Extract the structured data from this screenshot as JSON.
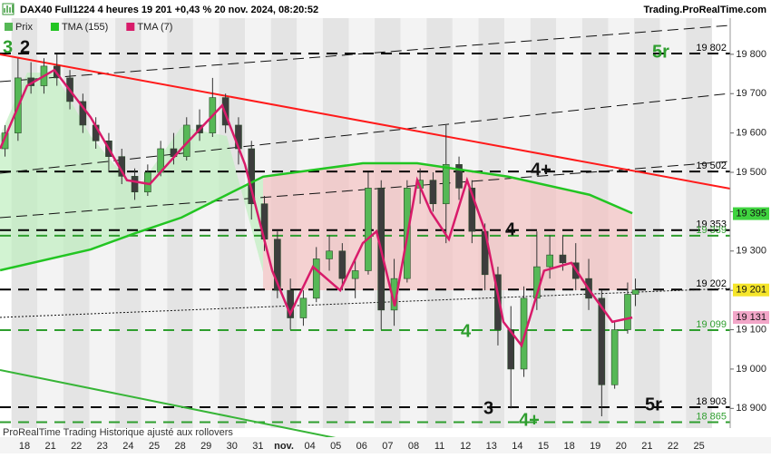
{
  "chart_data": {
    "type": "candlestick",
    "title": "DAX40 Full1224 4 heures 19 201 +0,43 % 20 nov. 2024, 08:20:52",
    "source": "Trading.ProRealTime.com",
    "footer": "ProRealTime Trading Historique ajusté aux rollovers",
    "x_labels": [
      "18",
      "21",
      "22",
      "23",
      "24",
      "25",
      "28",
      "29",
      "30",
      "31",
      "nov.",
      "04",
      "05",
      "06",
      "07",
      "08",
      "11",
      "12",
      "13",
      "14",
      "15",
      "18",
      "19",
      "20",
      "21",
      "22",
      "25"
    ],
    "xlim": [
      -0.944,
      27.203
    ],
    "ylim": [
      18850,
      19938
    ],
    "yticks": [
      {
        "value": 18900,
        "label": "18 900"
      },
      {
        "value": 19000,
        "label": "19 000"
      },
      {
        "value": 19100,
        "label": "19 100"
      },
      {
        "value": 19200,
        "label": "19 200"
      },
      {
        "value": 19300,
        "label": "19 300"
      },
      {
        "value": 19400,
        "label": "19 400"
      },
      {
        "value": 19500,
        "label": "19 500"
      },
      {
        "value": 19600,
        "label": "19 600"
      },
      {
        "value": 19700,
        "label": "19 700"
      },
      {
        "value": 19800,
        "label": "19 800"
      }
    ],
    "candles": {
      "name": "Prix",
      "up_color": "#56b856",
      "down_color": "#3d3d3d",
      "x": [
        -0.75,
        -0.25,
        0.25,
        0.75,
        1.25,
        1.75,
        2.25,
        2.75,
        3.25,
        3.75,
        4.25,
        4.75,
        5.25,
        5.75,
        6.25,
        6.75,
        7.25,
        7.75,
        8.25,
        8.75,
        9.25,
        9.75,
        10.25,
        10.75,
        11.25,
        11.75,
        12.25,
        12.75,
        13.25,
        13.75,
        14.25,
        14.75,
        15.25,
        15.75,
        16.25,
        16.75,
        17.25,
        17.75,
        18.25,
        18.75,
        19.25,
        19.75,
        20.25,
        20.75,
        21.25,
        21.75,
        22.25,
        22.75,
        23.25,
        23.55
      ],
      "open": [
        19560,
        19600,
        19740,
        19720,
        19770,
        19740,
        19680,
        19620,
        19580,
        19540,
        19490,
        19450,
        19500,
        19560,
        19540,
        19620,
        19600,
        19690,
        19620,
        19560,
        19420,
        19330,
        19200,
        19130,
        19180,
        19280,
        19300,
        19230,
        19250,
        19460,
        19150,
        19230,
        19460,
        19480,
        19420,
        19520,
        19460,
        19350,
        19240,
        19100,
        19000,
        19180,
        19260,
        19290,
        19270,
        19230,
        19180,
        18960,
        19100,
        19190
      ],
      "high": [
        19620,
        19790,
        19780,
        19790,
        19800,
        19760,
        19700,
        19640,
        19600,
        19560,
        19510,
        19520,
        19580,
        19600,
        19640,
        19660,
        19740,
        19700,
        19640,
        19580,
        19440,
        19350,
        19230,
        19200,
        19310,
        19340,
        19320,
        19280,
        19500,
        19480,
        19280,
        19480,
        19510,
        19500,
        19620,
        19540,
        19480,
        19370,
        19260,
        19160,
        19210,
        19350,
        19340,
        19340,
        19320,
        19280,
        19200,
        19120,
        19220,
        19230
      ],
      "low": [
        19540,
        19580,
        19700,
        19700,
        19720,
        19660,
        19600,
        19560,
        19500,
        19470,
        19430,
        19440,
        19490,
        19520,
        19530,
        19580,
        19590,
        19600,
        19520,
        19380,
        19300,
        19180,
        19100,
        19110,
        19170,
        19250,
        19200,
        19180,
        19240,
        19100,
        19110,
        19220,
        19420,
        19400,
        19320,
        19430,
        19320,
        19200,
        19060,
        18900,
        18980,
        19150,
        19230,
        19250,
        19200,
        19150,
        18880,
        18950,
        19090,
        19160
      ],
      "close": [
        19600,
        19740,
        19720,
        19770,
        19740,
        19680,
        19620,
        19580,
        19540,
        19490,
        19450,
        19500,
        19560,
        19540,
        19620,
        19600,
        19690,
        19620,
        19560,
        19420,
        19330,
        19200,
        19130,
        19180,
        19280,
        19300,
        19230,
        19250,
        19460,
        19150,
        19230,
        19460,
        19480,
        19420,
        19520,
        19460,
        19350,
        19240,
        19100,
        19000,
        19180,
        19260,
        19290,
        19270,
        19230,
        19180,
        18960,
        19100,
        19190,
        19201
      ]
    },
    "series": [
      {
        "name": "TMA (155)",
        "color": "#22c522",
        "x": [
          -0.94,
          2.55,
          4.3,
          6.05,
          7.8,
          9.2,
          13.04,
          15.14,
          18.64,
          21.78,
          23.43
        ],
        "values": [
          19251,
          19304,
          19346,
          19385,
          19443,
          19489,
          19523,
          19523,
          19489,
          19443,
          19396
        ]
      },
      {
        "name": "TMA (7)",
        "color": "#d81b6a",
        "x": [
          -0.94,
          0.1,
          1.15,
          2.55,
          3.95,
          4.83,
          6.05,
          7.62,
          8.5,
          9.55,
          10.24,
          11.12,
          12.17,
          13.04,
          13.57,
          14.27,
          15.14,
          15.66,
          16.36,
          17.06,
          17.76,
          18.46,
          19.16,
          20.03,
          21.08,
          21.78,
          22.66,
          23.43
        ],
        "values": [
          19560,
          19720,
          19760,
          19640,
          19480,
          19470,
          19560,
          19670,
          19520,
          19250,
          19140,
          19260,
          19200,
          19320,
          19350,
          19160,
          19480,
          19400,
          19330,
          19480,
          19350,
          19120,
          19060,
          19250,
          19270,
          19200,
          19120,
          19131
        ]
      }
    ],
    "levels": [
      {
        "value": 19802,
        "label": "19 802",
        "color": "#000000"
      },
      {
        "value": 19502,
        "label": "19 502",
        "color": "#000000"
      },
      {
        "value": 19353,
        "label": "19 353",
        "color": "#000000"
      },
      {
        "value": 19339,
        "label": "19 339",
        "color": "#2e9e2e"
      },
      {
        "value": 19202,
        "label": "19 202",
        "color": "#000000"
      },
      {
        "value": 19099,
        "label": "19 099",
        "color": "#2e9e2e"
      },
      {
        "value": 18903,
        "label": "18 903",
        "color": "#000000"
      },
      {
        "value": 18865,
        "label": "18 865",
        "color": "#2e9e2e"
      }
    ],
    "price_tags": [
      {
        "value": 19395,
        "label": "19 395",
        "color": "#3fd33f"
      },
      {
        "value": 19201,
        "label": "19 201",
        "color": "#f5e52a"
      },
      {
        "value": 19131,
        "label": "19 131",
        "color": "#f2a6c8"
      }
    ],
    "annotations": [
      "3",
      "2",
      "5r",
      "4+",
      "4",
      "4",
      "3",
      "5r",
      "4+"
    ]
  }
}
